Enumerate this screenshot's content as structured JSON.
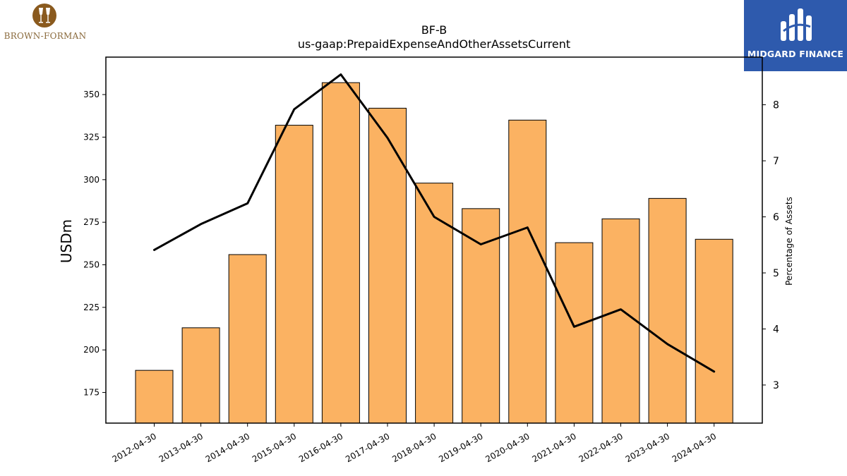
{
  "branding": {
    "left_logo_text": "BROWN-FORMAN",
    "right_logo_text": "MIDGARD FINANCE",
    "left_logo_color": "#8a5a1e",
    "right_logo_bg": "#2e5aad"
  },
  "chart_data": {
    "type": "bar",
    "title": "BF-B",
    "subtitle": "us-gaap:PrepaidExpenseAndOtherAssetsCurrent",
    "ylabel": "USDm",
    "y2label": "Percentage of Assets",
    "categories": [
      "2012-04-30",
      "2013-04-30",
      "2014-04-30",
      "2015-04-30",
      "2016-04-30",
      "2017-04-30",
      "2018-04-30",
      "2019-04-30",
      "2020-04-30",
      "2021-04-30",
      "2022-04-30",
      "2023-04-30",
      "2024-04-30"
    ],
    "series": [
      {
        "type": "bar",
        "axis": "left",
        "color": "#fbb262",
        "values": [
          188,
          213,
          256,
          332,
          357,
          342,
          298,
          283,
          335,
          263,
          277,
          289,
          265
        ]
      },
      {
        "type": "line",
        "axis": "right",
        "color": "#000000",
        "values": [
          5.41,
          5.87,
          6.24,
          7.92,
          8.54,
          7.41,
          6.0,
          5.51,
          5.81,
          4.04,
          4.35,
          3.73,
          3.24
        ]
      }
    ],
    "ylim": [
      157,
      372
    ],
    "y2lim": [
      2.32,
      8.85
    ],
    "yticks": [
      175,
      200,
      225,
      250,
      275,
      300,
      325,
      350
    ],
    "y2ticks": [
      3,
      4,
      5,
      6,
      7,
      8
    ],
    "grid": false,
    "legend": "none"
  }
}
